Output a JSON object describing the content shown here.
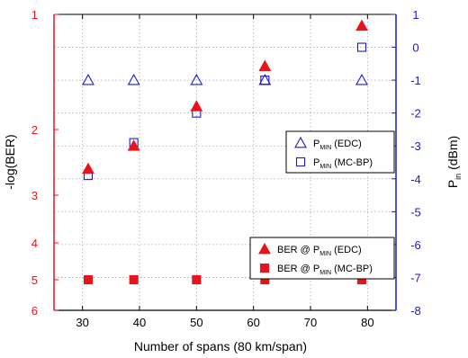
{
  "chart_data": {
    "type": "scatter",
    "xlabel": "Number of spans (80 km/span)",
    "ylabel_left": "-log(BER)",
    "ylabel_right": {
      "main": "P",
      "sub": "in",
      "rest": " (dBm)"
    },
    "x_range": [
      25,
      85
    ],
    "x_ticks": [
      30,
      40,
      50,
      60,
      70,
      80
    ],
    "left_axis": {
      "scale": "ber-log",
      "ticks": [
        1,
        2,
        3,
        4,
        5,
        6
      ],
      "color": "#e8141b"
    },
    "right_axis": {
      "range": [
        -8,
        1
      ],
      "ticks": [
        1,
        0,
        -1,
        -2,
        -3,
        -4,
        -5,
        -6,
        -7,
        -8
      ],
      "color": "#1a1ac8"
    },
    "grid": true,
    "colors": {
      "red": "#e8141b",
      "blue": "#1a1ac8"
    },
    "series": [
      {
        "axis": "right",
        "marker": "triangle-open",
        "color": "#1a1ac8",
        "x": [
          31,
          39,
          50,
          62,
          79
        ],
        "y": [
          -1,
          -1,
          -1,
          -1,
          -1
        ]
      },
      {
        "axis": "right",
        "marker": "square-open",
        "color": "#1a1ac8",
        "x": [
          31,
          39,
          50,
          62,
          79
        ],
        "y": [
          -3.9,
          -2.9,
          -2.0,
          -1.0,
          0.0
        ]
      },
      {
        "axis": "left",
        "marker": "triangle-filled",
        "color": "#e8141b",
        "x": [
          31,
          39,
          50,
          62,
          79
        ],
        "y": [
          2.6,
          2.25,
          1.8,
          1.45,
          1.1
        ]
      },
      {
        "axis": "left",
        "marker": "square-filled",
        "color": "#e8141b",
        "x": [
          31,
          39,
          50,
          62,
          79
        ],
        "y": [
          5,
          5,
          5,
          5,
          5
        ]
      }
    ],
    "legends": [
      {
        "position": "upper-right",
        "entries": [
          {
            "marker": "triangle-open",
            "color": "#1a1ac8",
            "label": {
              "main": "P",
              "sub": "MIN",
              "rest": " (EDC)"
            }
          },
          {
            "marker": "square-open",
            "color": "#1a1ac8",
            "label": {
              "main": "P",
              "sub": "MIN",
              "rest": " (MC-BP)"
            }
          }
        ]
      },
      {
        "position": "lower-right",
        "entries": [
          {
            "marker": "triangle-filled",
            "color": "#e8141b",
            "label": {
              "main": "BER @ P",
              "sub": "MIN",
              "rest": " (EDC)"
            }
          },
          {
            "marker": "square-filled",
            "color": "#e8141b",
            "label": {
              "main": "BER @ P",
              "sub": "MIN",
              "rest": " (MC-BP)"
            }
          }
        ]
      }
    ]
  }
}
